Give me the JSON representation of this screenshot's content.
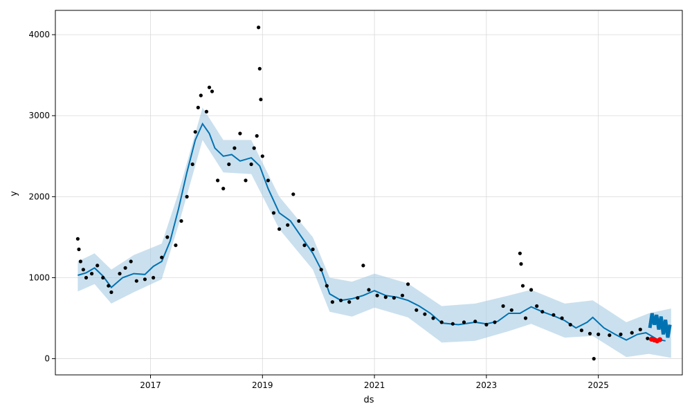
{
  "chart_data": {
    "type": "line",
    "xlabel": "ds",
    "ylabel": "y",
    "xlim": [
      2015.3,
      2026.5
    ],
    "ylim": [
      -200,
      4300
    ],
    "x_ticks": [
      2017,
      2019,
      2021,
      2023,
      2025
    ],
    "x_tick_labels": [
      "2017",
      "2019",
      "2021",
      "2023",
      "2025"
    ],
    "y_ticks": [
      0,
      1000,
      2000,
      3000,
      4000
    ],
    "y_tick_labels": [
      "0",
      "1000",
      "2000",
      "3000",
      "4000"
    ],
    "grid": true,
    "colors": {
      "forecast_line": "#0072b2",
      "uncertainty_band": "#a6cbe3",
      "observations": "#000000",
      "future_forecast": "#0072b2",
      "highlight_points": "#ff0000"
    },
    "series": [
      {
        "role": "forecast",
        "points": [
          [
            2015.7,
            1030
          ],
          [
            2015.85,
            1060
          ],
          [
            2016.0,
            1120
          ],
          [
            2016.15,
            1020
          ],
          [
            2016.3,
            880
          ],
          [
            2016.5,
            1000
          ],
          [
            2016.7,
            1050
          ],
          [
            2016.9,
            1040
          ],
          [
            2017.05,
            1140
          ],
          [
            2017.2,
            1200
          ],
          [
            2017.35,
            1450
          ],
          [
            2017.5,
            1850
          ],
          [
            2017.65,
            2300
          ],
          [
            2017.8,
            2700
          ],
          [
            2017.93,
            2900
          ],
          [
            2018.05,
            2780
          ],
          [
            2018.15,
            2600
          ],
          [
            2018.3,
            2500
          ],
          [
            2018.45,
            2520
          ],
          [
            2018.6,
            2440
          ],
          [
            2018.8,
            2480
          ],
          [
            2018.95,
            2380
          ],
          [
            2019.1,
            2100
          ],
          [
            2019.3,
            1800
          ],
          [
            2019.5,
            1700
          ],
          [
            2019.7,
            1500
          ],
          [
            2019.9,
            1300
          ],
          [
            2020.05,
            1100
          ],
          [
            2020.2,
            800
          ],
          [
            2020.4,
            720
          ],
          [
            2020.6,
            740
          ],
          [
            2020.8,
            780
          ],
          [
            2021.0,
            840
          ],
          [
            2021.2,
            780
          ],
          [
            2021.4,
            760
          ],
          [
            2021.6,
            720
          ],
          [
            2021.8,
            650
          ],
          [
            2022.0,
            560
          ],
          [
            2022.2,
            440
          ],
          [
            2022.5,
            420
          ],
          [
            2022.8,
            450
          ],
          [
            2023.0,
            430
          ],
          [
            2023.2,
            460
          ],
          [
            2023.4,
            560
          ],
          [
            2023.6,
            560
          ],
          [
            2023.8,
            640
          ],
          [
            2024.0,
            580
          ],
          [
            2024.2,
            530
          ],
          [
            2024.4,
            470
          ],
          [
            2024.6,
            380
          ],
          [
            2024.8,
            450
          ],
          [
            2024.9,
            510
          ],
          [
            2025.1,
            380
          ],
          [
            2025.3,
            300
          ],
          [
            2025.5,
            230
          ],
          [
            2025.7,
            300
          ],
          [
            2025.85,
            320
          ],
          [
            2025.95,
            280
          ],
          [
            2026.05,
            240
          ],
          [
            2026.2,
            220
          ]
        ]
      },
      {
        "role": "future-forecast",
        "points": [
          [
            2025.92,
            380
          ],
          [
            2025.96,
            560
          ],
          [
            2026.0,
            420
          ],
          [
            2026.04,
            540
          ],
          [
            2026.08,
            360
          ],
          [
            2026.12,
            520
          ],
          [
            2026.16,
            300
          ],
          [
            2026.2,
            480
          ],
          [
            2026.24,
            260
          ],
          [
            2026.28,
            420
          ]
        ]
      },
      {
        "role": "observations",
        "points": [
          [
            2015.7,
            1480
          ],
          [
            2015.72,
            1350
          ],
          [
            2015.75,
            1200
          ],
          [
            2015.8,
            1100
          ],
          [
            2015.85,
            1000
          ],
          [
            2015.95,
            1050
          ],
          [
            2016.05,
            1150
          ],
          [
            2016.15,
            1000
          ],
          [
            2016.25,
            900
          ],
          [
            2016.3,
            820
          ],
          [
            2016.45,
            1050
          ],
          [
            2016.55,
            1120
          ],
          [
            2016.65,
            1200
          ],
          [
            2016.75,
            960
          ],
          [
            2016.9,
            980
          ],
          [
            2017.05,
            1000
          ],
          [
            2017.2,
            1250
          ],
          [
            2017.3,
            1500
          ],
          [
            2017.45,
            1400
          ],
          [
            2017.55,
            1700
          ],
          [
            2017.65,
            2000
          ],
          [
            2017.75,
            2400
          ],
          [
            2017.8,
            2800
          ],
          [
            2017.85,
            3100
          ],
          [
            2017.9,
            3250
          ],
          [
            2018.0,
            3050
          ],
          [
            2018.05,
            3350
          ],
          [
            2018.1,
            3300
          ],
          [
            2018.2,
            2200
          ],
          [
            2018.3,
            2100
          ],
          [
            2018.4,
            2400
          ],
          [
            2018.5,
            2600
          ],
          [
            2018.6,
            2780
          ],
          [
            2018.7,
            2200
          ],
          [
            2018.8,
            2400
          ],
          [
            2018.85,
            2600
          ],
          [
            2018.9,
            2750
          ],
          [
            2018.93,
            4090
          ],
          [
            2018.95,
            3580
          ],
          [
            2018.97,
            3200
          ],
          [
            2019.0,
            2500
          ],
          [
            2019.1,
            2200
          ],
          [
            2019.2,
            1800
          ],
          [
            2019.3,
            1600
          ],
          [
            2019.45,
            1650
          ],
          [
            2019.55,
            2030
          ],
          [
            2019.65,
            1700
          ],
          [
            2019.75,
            1400
          ],
          [
            2019.9,
            1350
          ],
          [
            2020.05,
            1100
          ],
          [
            2020.15,
            900
          ],
          [
            2020.25,
            700
          ],
          [
            2020.4,
            720
          ],
          [
            2020.55,
            700
          ],
          [
            2020.7,
            750
          ],
          [
            2020.8,
            1150
          ],
          [
            2020.9,
            850
          ],
          [
            2021.05,
            780
          ],
          [
            2021.2,
            760
          ],
          [
            2021.35,
            750
          ],
          [
            2021.5,
            780
          ],
          [
            2021.6,
            920
          ],
          [
            2021.75,
            600
          ],
          [
            2021.9,
            550
          ],
          [
            2022.05,
            500
          ],
          [
            2022.2,
            450
          ],
          [
            2022.4,
            430
          ],
          [
            2022.6,
            450
          ],
          [
            2022.8,
            460
          ],
          [
            2023.0,
            420
          ],
          [
            2023.15,
            450
          ],
          [
            2023.3,
            650
          ],
          [
            2023.45,
            600
          ],
          [
            2023.6,
            1300
          ],
          [
            2023.62,
            1170
          ],
          [
            2023.65,
            900
          ],
          [
            2023.7,
            500
          ],
          [
            2023.8,
            850
          ],
          [
            2023.9,
            650
          ],
          [
            2024.0,
            580
          ],
          [
            2024.2,
            540
          ],
          [
            2024.35,
            500
          ],
          [
            2024.5,
            420
          ],
          [
            2024.7,
            350
          ],
          [
            2024.85,
            310
          ],
          [
            2024.92,
            0
          ],
          [
            2025.0,
            300
          ],
          [
            2025.2,
            290
          ],
          [
            2025.4,
            300
          ],
          [
            2025.6,
            320
          ],
          [
            2025.75,
            360
          ],
          [
            2025.88,
            250
          ]
        ]
      },
      {
        "role": "highlight",
        "points": [
          [
            2025.95,
            240
          ],
          [
            2026.0,
            230
          ],
          [
            2026.05,
            220
          ],
          [
            2026.1,
            235
          ]
        ]
      }
    ],
    "uncertainty_band": {
      "upper": [
        [
          2015.7,
          1200
        ],
        [
          2016.0,
          1300
        ],
        [
          2016.3,
          1100
        ],
        [
          2016.7,
          1280
        ],
        [
          2017.2,
          1420
        ],
        [
          2017.5,
          2050
        ],
        [
          2017.93,
          3100
        ],
        [
          2018.3,
          2700
        ],
        [
          2018.8,
          2700
        ],
        [
          2019.3,
          2000
        ],
        [
          2019.9,
          1500
        ],
        [
          2020.2,
          1000
        ],
        [
          2020.6,
          950
        ],
        [
          2021.0,
          1050
        ],
        [
          2021.6,
          930
        ],
        [
          2022.2,
          650
        ],
        [
          2022.8,
          680
        ],
        [
          2023.4,
          780
        ],
        [
          2023.8,
          850
        ],
        [
          2024.4,
          680
        ],
        [
          2024.9,
          720
        ],
        [
          2025.5,
          450
        ],
        [
          2025.9,
          560
        ],
        [
          2026.3,
          620
        ]
      ],
      "lower": [
        [
          2015.7,
          830
        ],
        [
          2016.0,
          920
        ],
        [
          2016.3,
          680
        ],
        [
          2016.7,
          820
        ],
        [
          2017.2,
          980
        ],
        [
          2017.5,
          1650
        ],
        [
          2017.93,
          2700
        ],
        [
          2018.3,
          2300
        ],
        [
          2018.8,
          2280
        ],
        [
          2019.3,
          1600
        ],
        [
          2019.9,
          1100
        ],
        [
          2020.2,
          580
        ],
        [
          2020.6,
          520
        ],
        [
          2021.0,
          630
        ],
        [
          2021.6,
          510
        ],
        [
          2022.2,
          200
        ],
        [
          2022.8,
          220
        ],
        [
          2023.4,
          340
        ],
        [
          2023.8,
          430
        ],
        [
          2024.4,
          260
        ],
        [
          2024.9,
          280
        ],
        [
          2025.5,
          20
        ],
        [
          2025.9,
          60
        ],
        [
          2026.3,
          10
        ]
      ]
    }
  }
}
